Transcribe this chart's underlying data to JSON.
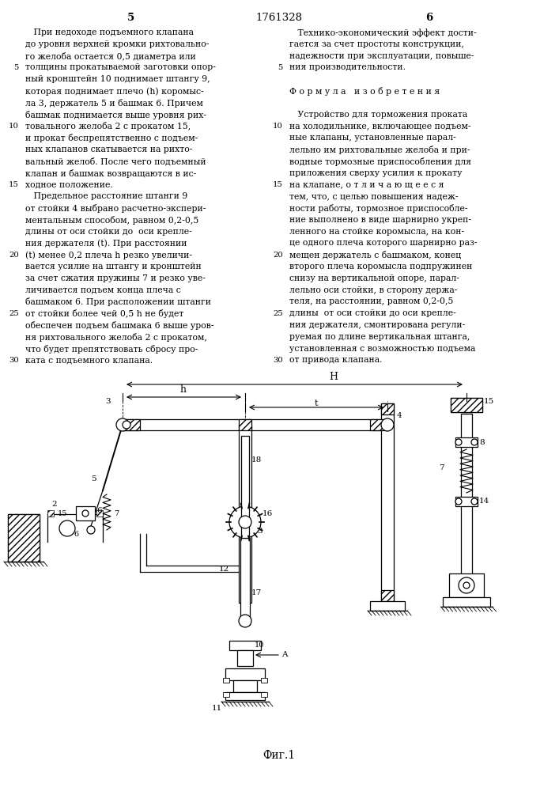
{
  "page_number_center": "1761328",
  "page_left": "5",
  "page_right": "6",
  "background_color": "#ffffff",
  "text_color": "#000000",
  "left_column_lines": [
    "   При недоходе подъемного клапана",
    "до уровня верхней кромки рихтовально-",
    "го желоба остается 0,5 диаметра или",
    "толщины прокатываемой заготовки опор-",
    "ный кронштейн 10 поднимает штангу 9,",
    "которая поднимает плечо (h) коромыс-",
    "ла 3, держатель 5 и башмак 6. Причем",
    "башмак поднимается выше уровня рих-",
    "товального желоба 2 с прокатом 15,",
    "и прокат беспрепятственно с подъем-",
    "ных клапанов скатывается на рихто-",
    "вальный желоб. После чего подъемный",
    "клапан и башмак возвращаются в ис-",
    "ходное положение.",
    "   Предельное расстояние штанги 9",
    "от стойки 4 выбрано расчетно-экспери-",
    "ментальным способом, равном 0,2-0,5",
    "длины от оси стойки до  оси крепле-",
    "ния держателя (t). При расстоянии",
    "(t) менее 0,2 плеча h резко увеличи-",
    "вается усилие на штангу и кронштейн",
    "за счет сжатия пружины 7 и резко уве-",
    "личивается подъем конца плеча с",
    "башмаком 6. При расположении штанги",
    "от стойки более чей 0,5 h не будет",
    "обеспечен подъем башмака 6 выше уров-",
    "ня рихтовального желоба 2 с прокатом,",
    "что будет препятствовать сбросу про-",
    "ката с подъемного клапана."
  ],
  "left_line_numbers": {
    "3": "5",
    "8": "10",
    "13": "15",
    "19": "20",
    "24": "25",
    "28": "30"
  },
  "right_column_lines": [
    "   Технико-экономический эффект дости-",
    "гается за счет простоты конструкции,",
    "надежности при эксплуатации, повыше-",
    "ния производительности.",
    "",
    "Ф о р м у л а   и з о б р е т е н и я",
    "",
    "   Устройство для торможения проката",
    "на холодильнике, включающее подъем-",
    "ные клапаны, установленные парал-",
    "лельно им рихтовальные желоба и при-",
    "водные тормозные приспособления для",
    "приложения сверху усилия к прокату",
    "на клапане, о т л и ч а ю щ е е с я",
    "тем, что, с целью повышения надеж-",
    "ности работы, тормозное приспособле-",
    "ние выполнено в виде шарнирно укреп-",
    "ленного на стойке коромысла, на кон-",
    "це одного плеча которого шарнирно раз-",
    "мещен держатель с башмаком, конец",
    "второго плеча коромысла подпружинен",
    "снизу на вертикальной опоре, парал-",
    "лельно оси стойки, в сторону держа-",
    "теля, на расстоянии, равном 0,2-0,5",
    "длины  от оси стойки до оси крепле-",
    "ния держателя, смонтирована регули-",
    "руемая по длине вертикальная штанга,",
    "установленная с возможностью подъема",
    "от привода клапана."
  ],
  "right_line_numbers": {
    "3": "5",
    "8": "10",
    "13": "15",
    "19": "20",
    "24": "25",
    "28": "30"
  },
  "caption": "Фиг.1",
  "figsize": [
    7.07,
    10.0
  ],
  "dpi": 100
}
